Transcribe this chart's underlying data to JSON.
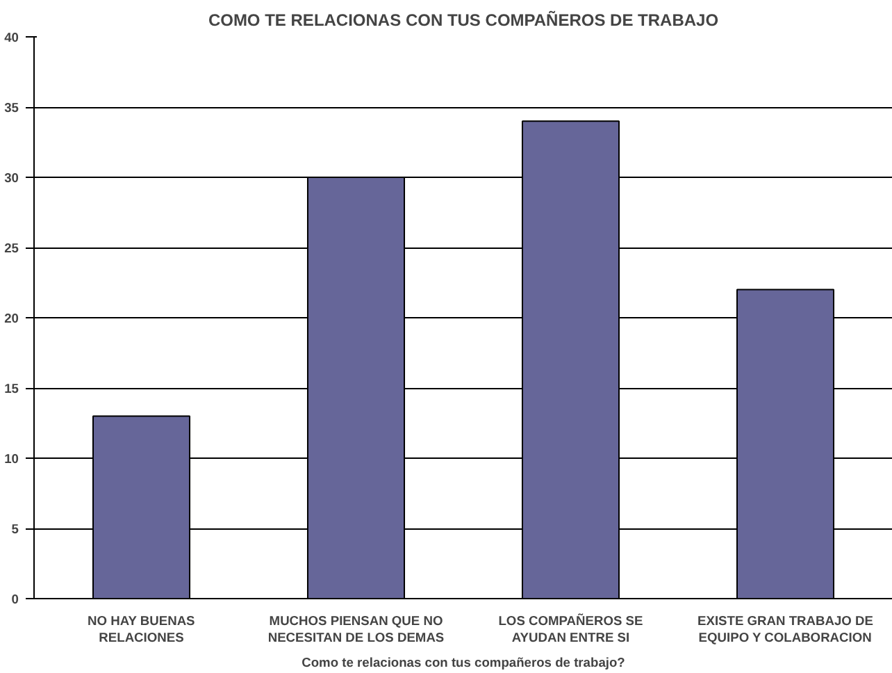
{
  "chart_data": {
    "type": "bar",
    "title": "COMO TE RELACIONAS CON TUS COMPAÑEROS DE TRABAJO",
    "xlabel": "Como te relacionas con tus compañeros de trabajo?",
    "categories": [
      "NO HAY BUENAS RELACIONES",
      "MUCHOS PIENSAN QUE NO NECESITAN DE LOS DEMAS",
      "LOS COMPAÑEROS SE AYUDAN ENTRE SI",
      "EXISTE GRAN TRABAJO DE EQUIPO Y COLABORACION"
    ],
    "values": [
      13,
      30,
      34,
      22
    ],
    "color": "#666699",
    "ylim": [
      0,
      40
    ],
    "yticks": [
      0,
      5,
      10,
      15,
      20,
      25,
      30,
      35,
      40
    ],
    "grid": "y"
  }
}
